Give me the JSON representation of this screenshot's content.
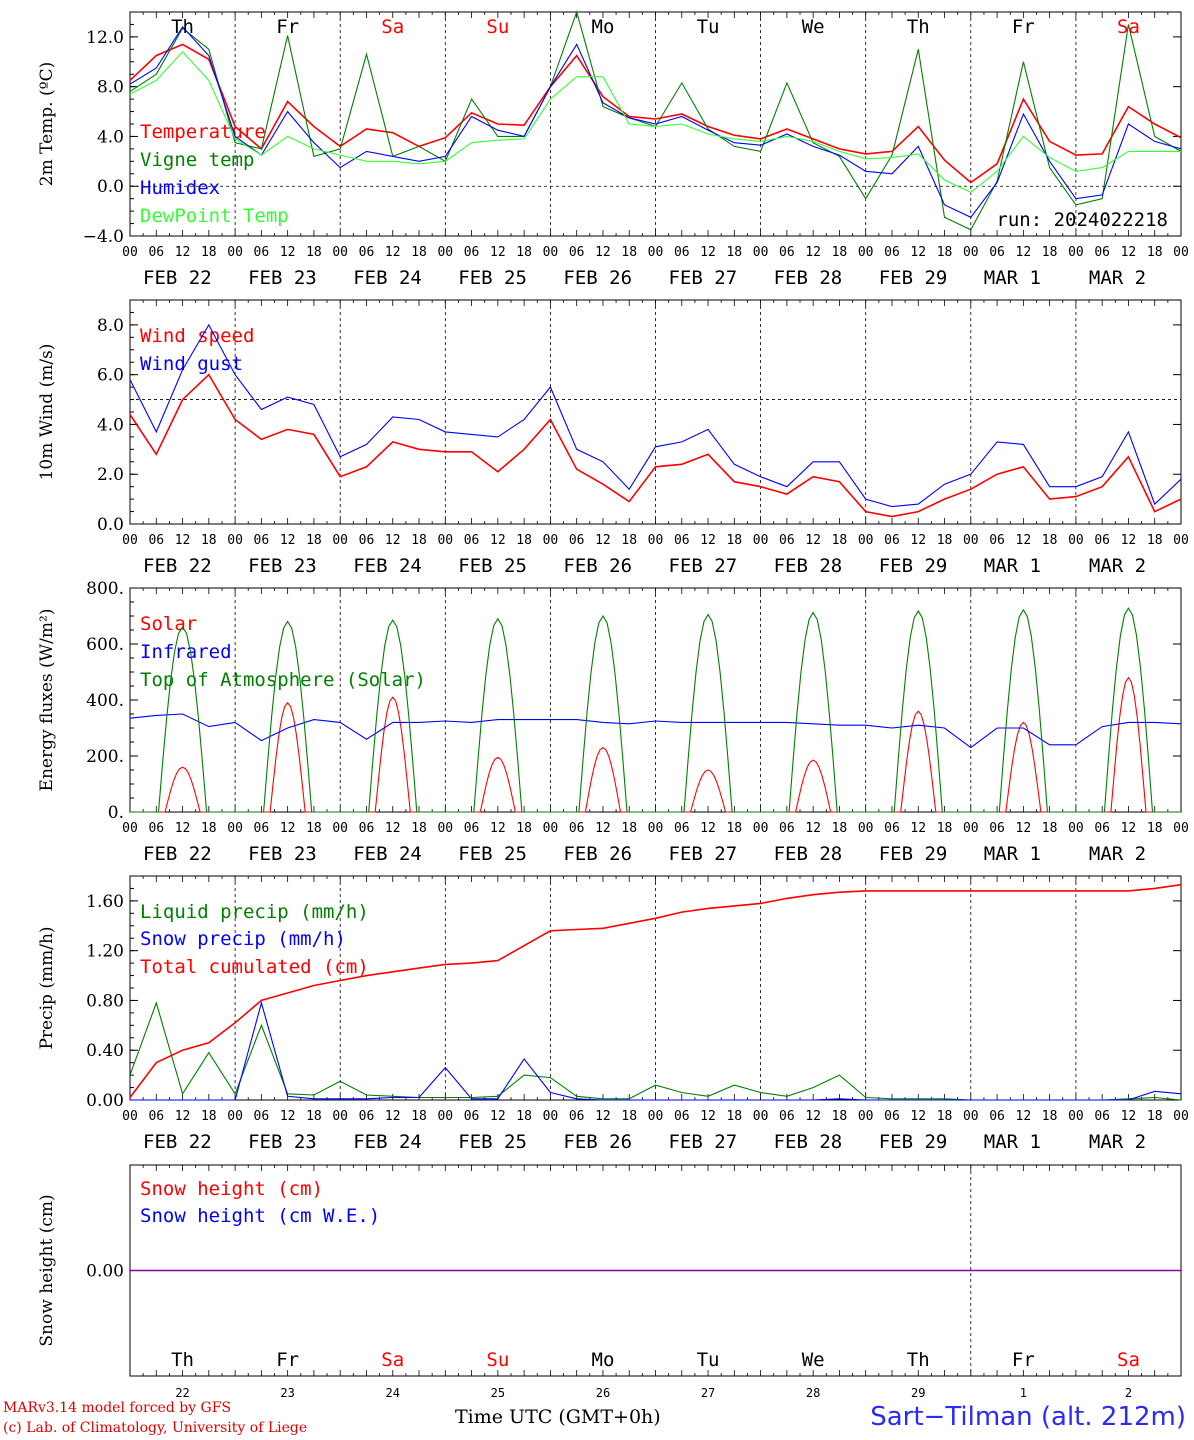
{
  "footer": {
    "credit_line1": "MARv3.14 model forced by GFS",
    "credit_line2": "(c) Lab. of Climatology, University of Liege",
    "station": "Sart−Tilman (alt. 212m)",
    "x_title": "Time UTC (GMT+0h)"
  },
  "colors": {
    "red": "#ff0000",
    "green": "#008000",
    "blue": "#0000ff",
    "lightgreen": "#33ff33",
    "purple": "#8800aa"
  },
  "chart_data": [
    {
      "type": "line",
      "ylabel": "2m Temp. (ºC)",
      "ylim": [
        -4,
        14
      ],
      "yticks": [
        -4,
        0,
        4,
        8,
        12
      ],
      "ytick_labels": [
        "−4.0",
        "0.0",
        "4.0",
        "8.0",
        "12.0"
      ],
      "day_labels": [
        "Th",
        "Fr",
        "Sa",
        "Su",
        "Mo",
        "Tu",
        "We",
        "Th",
        "Fr",
        "Sa"
      ],
      "weekend_days": [
        2,
        3,
        9
      ],
      "dashed_zero": 0,
      "annotation": "run: 2024022218",
      "x_hours_per_point": 6,
      "series": [
        {
          "name": "Temperature",
          "color": "red",
          "values": [
            8.5,
            10.5,
            11.4,
            10.2,
            4.8,
            3.0,
            6.8,
            4.8,
            3.2,
            4.6,
            4.3,
            3.2,
            3.9,
            5.9,
            5.0,
            4.9,
            8.0,
            10.5,
            7.2,
            5.6,
            5.4,
            5.8,
            4.8,
            4.1,
            3.8,
            4.6,
            3.8,
            3.0,
            2.6,
            2.8,
            4.8,
            2.1,
            0.3,
            1.8,
            7.0,
            3.6,
            2.5,
            2.6,
            6.4,
            5.0,
            3.9
          ]
        },
        {
          "name": "Vigne temp",
          "color": "green",
          "values": [
            7.6,
            9.0,
            12.7,
            11.0,
            3.5,
            3.0,
            12.1,
            2.4,
            3.0,
            10.6,
            2.4,
            3.2,
            2.0,
            7.0,
            4.0,
            4.0,
            8.0,
            14.0,
            6.4,
            5.5,
            4.8,
            8.3,
            4.6,
            3.2,
            2.8,
            8.3,
            3.5,
            2.4,
            -1.0,
            2.5,
            11.0,
            -2.5,
            -3.5,
            0.4,
            10.0,
            1.5,
            -1.5,
            -1.0,
            13.0,
            4.0,
            2.8
          ]
        },
        {
          "name": "Humidex",
          "color": "blue",
          "values": [
            8.2,
            9.5,
            12.8,
            10.5,
            4.0,
            2.5,
            6.0,
            3.5,
            1.5,
            2.8,
            2.4,
            2.0,
            2.4,
            5.6,
            4.5,
            4.0,
            8.0,
            11.4,
            6.7,
            5.5,
            5.0,
            5.6,
            4.5,
            3.5,
            3.3,
            4.2,
            3.2,
            2.5,
            1.2,
            1.0,
            3.2,
            -1.5,
            -2.5,
            0.3,
            5.8,
            2.0,
            -1.0,
            -0.7,
            5.0,
            3.6,
            3.0
          ]
        },
        {
          "name": "DewPoint Temp",
          "color": "lightgreen",
          "values": [
            7.4,
            8.5,
            10.8,
            8.5,
            3.8,
            2.5,
            4.0,
            3.0,
            2.5,
            2.0,
            2.0,
            1.8,
            2.0,
            3.5,
            3.7,
            3.8,
            7.0,
            8.8,
            8.8,
            5.0,
            4.8,
            5.0,
            4.2,
            3.8,
            3.6,
            4.0,
            3.6,
            2.8,
            2.2,
            2.3,
            2.6,
            0.5,
            -0.5,
            1.2,
            4.0,
            2.3,
            1.2,
            1.5,
            2.8,
            2.8,
            2.8
          ]
        }
      ]
    },
    {
      "type": "line",
      "ylabel": "10m Wind (m/s)",
      "ylim": [
        0,
        9
      ],
      "yticks": [
        0,
        2,
        4,
        6,
        8
      ],
      "ytick_labels": [
        "0.0",
        "2.0",
        "4.0",
        "6.0",
        "8.0"
      ],
      "dashed_zero": 5,
      "x_hours_per_point": 6,
      "series": [
        {
          "name": "Wind speed",
          "color": "red",
          "values": [
            4.4,
            2.8,
            5.0,
            6.0,
            4.2,
            3.4,
            3.8,
            3.6,
            1.9,
            2.3,
            3.3,
            3.0,
            2.9,
            2.9,
            2.1,
            3.0,
            4.2,
            2.2,
            1.6,
            0.9,
            2.3,
            2.4,
            2.8,
            1.7,
            1.5,
            1.2,
            1.9,
            1.7,
            0.5,
            0.3,
            0.5,
            1.0,
            1.4,
            2.0,
            2.3,
            1.0,
            1.1,
            1.5,
            2.7,
            0.5,
            1.0
          ]
        },
        {
          "name": "Wind gust",
          "color": "blue",
          "values": [
            5.8,
            3.7,
            6.2,
            8.0,
            6.0,
            4.6,
            5.1,
            4.8,
            2.7,
            3.2,
            4.3,
            4.2,
            3.7,
            3.6,
            3.5,
            4.2,
            5.5,
            3.0,
            2.5,
            1.4,
            3.1,
            3.3,
            3.8,
            2.4,
            1.9,
            1.5,
            2.5,
            2.5,
            1.0,
            0.7,
            0.8,
            1.6,
            2.0,
            3.3,
            3.2,
            1.5,
            1.5,
            1.9,
            3.7,
            0.8,
            1.8
          ]
        }
      ]
    },
    {
      "type": "line",
      "ylabel": "Energy fluxes (W/m²)",
      "ylim": [
        0,
        800
      ],
      "yticks": [
        0,
        200,
        400,
        600,
        800
      ],
      "ytick_labels": [
        "0.",
        "200.",
        "400.",
        "600.",
        "800."
      ],
      "x_hours_per_point": 6,
      "series": [
        {
          "name": "Solar",
          "color": "red",
          "peaks": [
            160,
            390,
            410,
            195,
            230,
            150,
            185,
            360,
            320,
            480
          ]
        },
        {
          "name": "Infrared",
          "color": "blue",
          "values": [
            335,
            345,
            350,
            305,
            320,
            255,
            300,
            330,
            320,
            260,
            320,
            320,
            325,
            320,
            330,
            330,
            330,
            330,
            320,
            315,
            325,
            320,
            320,
            320,
            320,
            320,
            315,
            310,
            310,
            300,
            310,
            300,
            230,
            300,
            300,
            240,
            240,
            305,
            320,
            320,
            315
          ]
        },
        {
          "name": "Top of Atmosphere (Solar)",
          "color": "green",
          "peaks": [
            660,
            680,
            685,
            690,
            700,
            705,
            712,
            718,
            722,
            728
          ]
        }
      ]
    },
    {
      "type": "line",
      "ylabel": "Precip (mm/h)",
      "ylim": [
        0,
        1.8
      ],
      "yticks": [
        0,
        0.4,
        0.8,
        1.2,
        1.6
      ],
      "ytick_labels": [
        "0.00",
        "0.40",
        "0.80",
        "1.20",
        "1.60"
      ],
      "x_hours_per_point": 6,
      "series": [
        {
          "name": "Liquid precip (mm/h)",
          "color": "green",
          "values": [
            0.2,
            0.78,
            0.05,
            0.38,
            0.05,
            0.6,
            0.05,
            0.04,
            0.15,
            0.04,
            0.03,
            0.02,
            0.02,
            0.02,
            0.03,
            0.2,
            0.18,
            0.03,
            0.01,
            0.01,
            0.12,
            0.06,
            0.03,
            0.12,
            0.06,
            0.03,
            0.1,
            0.2,
            0.02,
            0.01,
            0.01,
            0.01,
            0.0,
            0.0,
            0.0,
            0.0,
            0.0,
            0.0,
            0.01,
            0.02,
            0.0
          ]
        },
        {
          "name": "Snow precip (mm/h)",
          "color": "blue",
          "values": [
            0.0,
            0.0,
            0.0,
            0.0,
            0.0,
            0.78,
            0.03,
            0.01,
            0.01,
            0.01,
            0.02,
            0.02,
            0.26,
            0.01,
            0.01,
            0.33,
            0.06,
            0.01,
            0.0,
            0.0,
            0.0,
            0.0,
            0.0,
            0.0,
            0.0,
            0.0,
            0.0,
            0.01,
            0.0,
            0.0,
            0.0,
            0.0,
            0.0,
            0.0,
            0.0,
            0.0,
            0.0,
            0.0,
            0.0,
            0.07,
            0.05
          ]
        },
        {
          "name": "Total cumulated (cm)",
          "color": "red",
          "values": [
            0.02,
            0.3,
            0.4,
            0.46,
            0.62,
            0.8,
            0.86,
            0.92,
            0.96,
            1.0,
            1.03,
            1.06,
            1.09,
            1.1,
            1.12,
            1.24,
            1.36,
            1.37,
            1.38,
            1.42,
            1.46,
            1.51,
            1.54,
            1.56,
            1.58,
            1.62,
            1.65,
            1.67,
            1.68,
            1.68,
            1.68,
            1.68,
            1.68,
            1.68,
            1.68,
            1.68,
            1.68,
            1.68,
            1.68,
            1.7,
            1.73
          ]
        }
      ]
    },
    {
      "type": "line",
      "ylabel": "Snow height (cm)",
      "ylim": [
        -1,
        1
      ],
      "yticks": [
        0
      ],
      "ytick_labels": [
        "0.00"
      ],
      "x_hours_per_point": 6,
      "series": [
        {
          "name": "Snow height (cm)",
          "color": "red",
          "values": [
            0,
            0
          ]
        },
        {
          "name": "Snow height (cm W.E.)",
          "color": "blue",
          "values": [
            0,
            0
          ]
        }
      ],
      "day_labels": [
        "Th",
        "Fr",
        "Sa",
        "Su",
        "Mo",
        "Tu",
        "We",
        "Th",
        "Fr",
        "Sa"
      ],
      "date_numbers": [
        "22",
        "23",
        "24",
        "25",
        "26",
        "27",
        "28",
        "29",
        "1",
        "2"
      ]
    }
  ],
  "time_axis": {
    "hour_labels": [
      "00",
      "06",
      "12",
      "18"
    ],
    "date_labels": [
      "FEB 22",
      "FEB 23",
      "FEB 24",
      "FEB 25",
      "FEB 26",
      "FEB 27",
      "FEB 28",
      "FEB 29",
      "MAR  1",
      "MAR  2"
    ]
  }
}
